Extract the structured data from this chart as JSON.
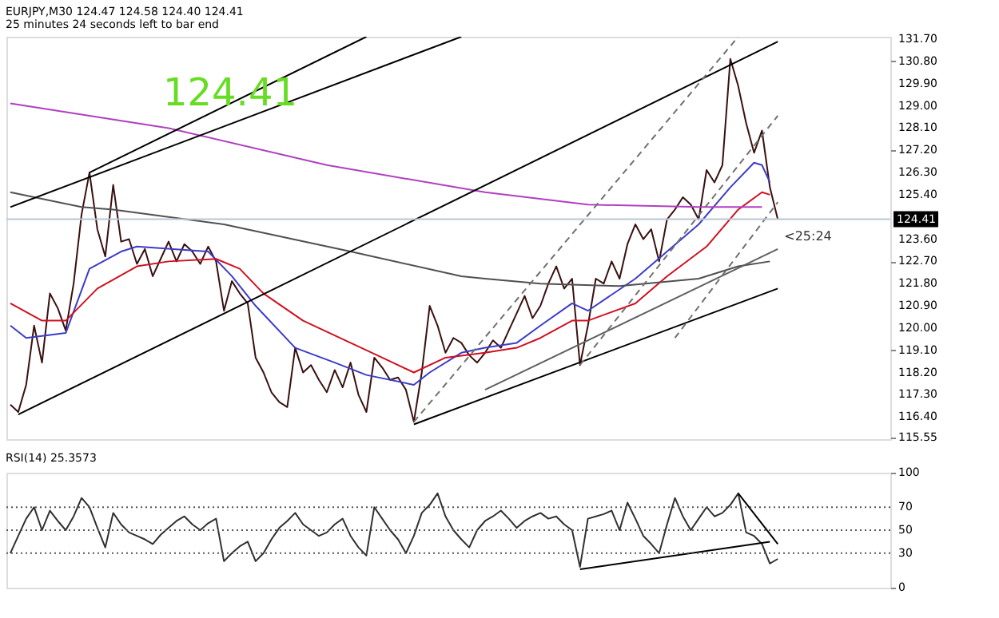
{
  "chart_data": [
    {
      "type": "line",
      "title": "EURJPY,M30  124.47 124.58 124.40 124.41",
      "subtitle": "25 minutes 24 seconds left to bar end",
      "annotations": [
        "124.41",
        "<25:24"
      ],
      "categories": [
        null,
        null,
        null,
        null,
        null,
        null,
        null,
        null,
        null,
        null,
        null,
        null,
        null,
        null,
        null,
        null,
        null,
        null,
        null,
        null,
        null,
        null,
        null,
        null,
        null,
        null,
        null,
        null,
        null,
        null,
        null,
        null,
        null,
        null,
        null,
        null,
        null,
        null,
        null,
        null,
        null,
        null,
        null,
        null,
        null,
        null,
        null,
        null,
        null,
        null,
        null,
        null,
        null,
        null,
        null,
        null,
        null,
        null,
        null,
        null,
        null,
        null,
        null,
        null,
        null,
        null,
        null,
        null,
        null,
        null,
        null,
        null,
        null,
        null,
        null,
        null,
        null,
        null,
        null,
        null,
        null,
        null,
        null,
        null,
        null,
        null,
        null,
        null,
        null,
        null,
        null,
        null,
        null,
        null,
        null,
        null,
        null,
        null
      ],
      "ylim": [
        115.5,
        131.8
      ],
      "tick_labels": "y",
      "grid": false,
      "legend": false,
      "yticks": [
        {
          "value": 115.55,
          "label": "115.55"
        },
        {
          "value": 116.4,
          "label": "116.40"
        },
        {
          "value": 117.3,
          "label": "117.30"
        },
        {
          "value": 118.2,
          "label": "118.20"
        },
        {
          "value": 119.1,
          "label": "119.10"
        },
        {
          "value": 120.0,
          "label": "120.00"
        },
        {
          "value": 120.9,
          "label": "120.90"
        },
        {
          "value": 121.8,
          "label": "121.80"
        },
        {
          "value": 122.7,
          "label": "122.70"
        },
        {
          "value": 123.6,
          "label": "123.60"
        },
        {
          "value": 125.4,
          "label": "125.40"
        },
        {
          "value": 126.3,
          "label": "126.30"
        },
        {
          "value": 127.2,
          "label": "127.20"
        },
        {
          "value": 128.1,
          "label": "128.10"
        },
        {
          "value": 129.0,
          "label": "129.00"
        },
        {
          "value": 129.9,
          "label": "129.90"
        },
        {
          "value": 130.8,
          "label": "130.80"
        },
        {
          "value": 131.7,
          "label": "131.70"
        }
      ],
      "ref_lines": [
        {
          "axis": "y",
          "value": 124.41,
          "label": "124.41",
          "color": "#b8c8d4"
        }
      ],
      "series": [
        {
          "color": "#3a1010",
          "values": [
            116.9,
            116.6,
            117.7,
            120.1,
            118.6,
            121.4,
            120.8,
            119.9,
            121.8,
            124.6,
            126.3,
            124.0,
            122.9,
            125.8,
            123.5,
            123.6,
            122.6,
            123.2,
            122.1,
            122.8,
            123.5,
            122.7,
            123.4,
            123.1,
            122.6,
            123.3,
            122.7,
            120.7,
            121.9,
            121.4,
            121.0,
            118.8,
            118.2,
            117.4,
            117.0,
            116.8,
            119.2,
            118.2,
            118.5,
            117.9,
            117.4,
            118.3,
            117.6,
            118.6,
            117.3,
            116.6,
            118.8,
            118.4,
            117.9,
            118.0,
            117.5,
            116.2,
            118.2,
            120.9,
            120.1,
            119.0,
            119.6,
            119.4,
            118.9,
            118.6,
            119.0,
            119.5,
            119.2,
            119.9,
            120.6,
            121.3,
            120.4,
            120.9,
            121.8,
            122.5,
            121.6,
            122.0,
            118.5,
            120.1,
            122.0,
            121.8,
            122.7,
            122.0,
            123.4,
            124.2,
            123.6,
            124.0,
            122.7,
            124.4,
            124.8,
            125.3,
            125.0,
            124.4,
            126.4,
            125.9,
            126.6,
            130.9,
            129.8,
            128.3,
            127.1,
            128.0,
            125.7,
            124.4
          ]
        },
        {
          "color": "#3c3cc8",
          "values": [
            120.1,
            null,
            119.6,
            null,
            null,
            null,
            null,
            119.8,
            null,
            null,
            122.4,
            null,
            null,
            null,
            123.1,
            null,
            123.3,
            null,
            null,
            null,
            null,
            null,
            null,
            null,
            null,
            123.1,
            null,
            null,
            122.1,
            null,
            null,
            120.9,
            null,
            null,
            null,
            null,
            119.2,
            null,
            null,
            null,
            null,
            118.6,
            null,
            null,
            null,
            118.1,
            null,
            null,
            null,
            null,
            null,
            117.7,
            null,
            118.2,
            null,
            null,
            null,
            119.0,
            null,
            null,
            119.2,
            null,
            null,
            null,
            119.4,
            null,
            null,
            120.1,
            null,
            null,
            null,
            121.0,
            null,
            120.7,
            null,
            null,
            null,
            null,
            null,
            122.0,
            null,
            null,
            null,
            123.1,
            null,
            null,
            null,
            124.2,
            null,
            null,
            null,
            125.7,
            null,
            null,
            126.7,
            126.6,
            125.9,
            null
          ]
        },
        {
          "color": "#d01020",
          "values": [
            121.0,
            null,
            null,
            null,
            120.3,
            null,
            null,
            120.3,
            null,
            null,
            null,
            121.6,
            null,
            null,
            null,
            null,
            122.5,
            null,
            null,
            null,
            122.7,
            null,
            null,
            null,
            null,
            null,
            122.8,
            null,
            null,
            122.4,
            null,
            null,
            121.4,
            null,
            null,
            null,
            null,
            120.3,
            null,
            null,
            null,
            null,
            null,
            119.4,
            null,
            null,
            null,
            118.8,
            null,
            null,
            null,
            118.2,
            null,
            null,
            null,
            118.8,
            null,
            null,
            null,
            null,
            119.0,
            null,
            null,
            null,
            119.2,
            null,
            null,
            119.6,
            null,
            null,
            null,
            120.3,
            null,
            120.3,
            null,
            null,
            null,
            null,
            null,
            121.0,
            null,
            null,
            null,
            122.1,
            null,
            null,
            null,
            null,
            123.3,
            null,
            null,
            null,
            124.8,
            null,
            null,
            125.5,
            125.4,
            null
          ]
        },
        {
          "color": "#505050",
          "values": [
            125.5,
            null,
            null,
            null,
            null,
            null,
            null,
            null,
            null,
            124.9,
            null,
            null,
            null,
            124.8,
            null,
            null,
            null,
            null,
            null,
            null,
            null,
            null,
            null,
            null,
            null,
            null,
            null,
            124.2,
            null,
            null,
            null,
            null,
            null,
            null,
            null,
            null,
            null,
            null,
            null,
            null,
            null,
            null,
            null,
            123.1,
            null,
            null,
            null,
            null,
            null,
            null,
            null,
            null,
            null,
            null,
            null,
            null,
            null,
            122.1,
            null,
            null,
            122.0,
            null,
            null,
            null,
            null,
            null,
            null,
            121.8,
            null,
            null,
            null,
            null,
            null,
            null,
            null,
            null,
            null,
            121.7,
            null,
            null,
            null,
            null,
            null,
            null,
            null,
            null,
            null,
            122.0,
            null,
            null,
            null,
            null,
            122.5,
            null,
            null,
            null,
            122.7,
            null
          ]
        },
        {
          "color": "#b040c0",
          "values": [
            129.1,
            null,
            null,
            null,
            null,
            null,
            null,
            null,
            null,
            null,
            null,
            null,
            null,
            null,
            null,
            null,
            null,
            null,
            null,
            null,
            128.1,
            null,
            null,
            null,
            null,
            null,
            null,
            null,
            null,
            null,
            null,
            null,
            null,
            null,
            null,
            null,
            null,
            null,
            null,
            null,
            126.6,
            null,
            null,
            null,
            null,
            null,
            null,
            null,
            null,
            null,
            null,
            null,
            null,
            null,
            null,
            null,
            null,
            null,
            null,
            null,
            125.5,
            null,
            null,
            null,
            null,
            null,
            null,
            null,
            null,
            null,
            null,
            null,
            null,
            125.0,
            null,
            null,
            null,
            null,
            null,
            null,
            null,
            null,
            null,
            null,
            null,
            null,
            null,
            124.9,
            null,
            null,
            null,
            null,
            null,
            null,
            null,
            124.9,
            null,
            null
          ]
        },
        {
          "color": "#000000",
          "values": [
            124.9,
            null,
            null,
            null,
            null,
            null,
            null,
            null,
            null,
            null,
            null,
            null,
            null,
            null,
            null,
            null,
            null,
            null,
            null,
            null,
            null,
            null,
            null,
            null,
            null,
            null,
            null,
            null,
            null,
            null,
            null,
            null,
            null,
            null,
            null,
            null,
            null,
            null,
            null,
            null,
            null,
            null,
            null,
            null,
            null,
            null,
            null,
            null,
            null,
            null,
            null,
            null,
            null,
            null,
            null,
            null,
            null,
            131.8,
            null,
            null,
            null,
            null,
            null,
            null,
            null,
            null,
            null,
            null,
            null,
            null,
            null,
            null,
            null,
            null,
            null,
            null,
            null,
            null,
            null,
            null,
            null,
            null,
            null,
            null,
            null,
            null,
            null,
            null,
            null,
            null,
            null,
            null,
            null,
            null,
            null,
            null,
            null,
            null
          ]
        },
        {
          "color": "#000000",
          "values": [
            null,
            null,
            null,
            null,
            null,
            null,
            null,
            null,
            null,
            null,
            126.3,
            null,
            null,
            null,
            null,
            null,
            null,
            null,
            null,
            null,
            null,
            null,
            null,
            null,
            null,
            null,
            null,
            null,
            null,
            null,
            null,
            null,
            null,
            null,
            null,
            null,
            null,
            null,
            null,
            null,
            null,
            null,
            null,
            null,
            null,
            131.8,
            null,
            null,
            null,
            null,
            null,
            null,
            null,
            null,
            null,
            null,
            null,
            null,
            null,
            null,
            null,
            null,
            null,
            null,
            null,
            null,
            null,
            null,
            null,
            null,
            null,
            null,
            null,
            null,
            null,
            null,
            null,
            null,
            null,
            null,
            null,
            null,
            null,
            null,
            null,
            null,
            null,
            null,
            null,
            null,
            null,
            null,
            null,
            null,
            null,
            null,
            null,
            null
          ]
        },
        {
          "color": "#000000",
          "values": [
            null,
            116.5,
            null,
            null,
            null,
            null,
            null,
            null,
            null,
            null,
            null,
            null,
            null,
            null,
            null,
            null,
            null,
            null,
            null,
            null,
            null,
            null,
            null,
            null,
            null,
            null,
            null,
            null,
            null,
            null,
            null,
            null,
            null,
            null,
            null,
            null,
            null,
            null,
            null,
            null,
            null,
            null,
            null,
            null,
            null,
            null,
            null,
            null,
            null,
            null,
            null,
            null,
            null,
            null,
            null,
            null,
            null,
            null,
            null,
            null,
            null,
            null,
            null,
            null,
            null,
            null,
            null,
            null,
            null,
            null,
            null,
            null,
            null,
            null,
            null,
            null,
            null,
            null,
            null,
            null,
            null,
            null,
            null,
            null,
            null,
            null,
            null,
            null,
            null,
            null,
            null,
            null,
            null,
            null,
            null,
            null,
            null,
            131.6
          ]
        },
        {
          "color": "#000000",
          "values": [
            null,
            null,
            null,
            null,
            null,
            null,
            null,
            null,
            null,
            null,
            null,
            null,
            null,
            null,
            null,
            null,
            null,
            null,
            null,
            null,
            null,
            null,
            null,
            null,
            null,
            null,
            null,
            null,
            null,
            null,
            null,
            null,
            null,
            null,
            null,
            null,
            null,
            null,
            null,
            null,
            null,
            null,
            null,
            null,
            null,
            null,
            null,
            null,
            null,
            null,
            null,
            116.1,
            null,
            null,
            null,
            null,
            null,
            null,
            null,
            null,
            null,
            null,
            null,
            null,
            null,
            null,
            null,
            null,
            null,
            null,
            null,
            null,
            null,
            null,
            null,
            null,
            null,
            null,
            null,
            null,
            null,
            null,
            null,
            null,
            null,
            null,
            null,
            null,
            null,
            null,
            null,
            null,
            null,
            null,
            null,
            null,
            null,
            121.6
          ]
        },
        {
          "color": "#606060",
          "values": [
            null,
            null,
            null,
            null,
            null,
            null,
            null,
            null,
            null,
            null,
            null,
            null,
            null,
            null,
            null,
            null,
            null,
            null,
            null,
            null,
            null,
            null,
            null,
            null,
            null,
            null,
            null,
            null,
            null,
            null,
            null,
            null,
            null,
            null,
            null,
            null,
            null,
            null,
            null,
            null,
            null,
            null,
            null,
            null,
            null,
            null,
            null,
            null,
            null,
            null,
            null,
            null,
            null,
            null,
            null,
            null,
            null,
            null,
            null,
            null,
            117.5,
            null,
            null,
            null,
            null,
            null,
            null,
            null,
            null,
            null,
            null,
            null,
            null,
            null,
            null,
            null,
            null,
            null,
            null,
            null,
            null,
            null,
            null,
            null,
            null,
            null,
            null,
            null,
            null,
            null,
            null,
            null,
            null,
            null,
            null,
            null,
            null,
            123.2
          ]
        },
        {
          "color": "#707070",
          "line_style": "dashed",
          "values": [
            null,
            null,
            null,
            null,
            null,
            null,
            null,
            null,
            null,
            null,
            null,
            null,
            null,
            null,
            null,
            null,
            null,
            null,
            null,
            null,
            null,
            null,
            null,
            null,
            null,
            null,
            null,
            null,
            null,
            null,
            null,
            null,
            null,
            null,
            null,
            null,
            null,
            null,
            null,
            null,
            null,
            null,
            null,
            null,
            null,
            null,
            null,
            null,
            null,
            null,
            null,
            116.2,
            null,
            null,
            null,
            null,
            null,
            null,
            null,
            null,
            null,
            null,
            null,
            null,
            null,
            null,
            null,
            null,
            null,
            null,
            null,
            null,
            null,
            null,
            null,
            null,
            null,
            null,
            null,
            null,
            null,
            null,
            null,
            null,
            null,
            null,
            null,
            null,
            null,
            null,
            null,
            null,
            131.8,
            null,
            null,
            null,
            null,
            null
          ]
        },
        {
          "color": "#707070",
          "line_style": "dashed",
          "values": [
            null,
            null,
            null,
            null,
            null,
            null,
            null,
            null,
            null,
            null,
            null,
            null,
            null,
            null,
            null,
            null,
            null,
            null,
            null,
            null,
            null,
            null,
            null,
            null,
            null,
            null,
            null,
            null,
            null,
            null,
            null,
            null,
            null,
            null,
            null,
            null,
            null,
            null,
            null,
            null,
            null,
            null,
            null,
            null,
            null,
            null,
            null,
            null,
            null,
            null,
            null,
            null,
            null,
            null,
            null,
            null,
            null,
            null,
            null,
            null,
            null,
            null,
            null,
            null,
            null,
            null,
            null,
            null,
            null,
            null,
            null,
            null,
            118.5,
            null,
            null,
            null,
            null,
            null,
            null,
            null,
            null,
            null,
            null,
            null,
            null,
            null,
            null,
            null,
            null,
            null,
            null,
            null,
            null,
            null,
            null,
            null,
            null,
            128.6
          ]
        },
        {
          "color": "#707070",
          "line_style": "dashed",
          "values": [
            null,
            null,
            null,
            null,
            null,
            null,
            null,
            null,
            null,
            null,
            null,
            null,
            null,
            null,
            null,
            null,
            null,
            null,
            null,
            null,
            null,
            null,
            null,
            null,
            null,
            null,
            null,
            null,
            null,
            null,
            null,
            null,
            null,
            null,
            null,
            null,
            null,
            null,
            null,
            null,
            null,
            null,
            null,
            null,
            null,
            null,
            null,
            null,
            null,
            null,
            null,
            null,
            null,
            null,
            null,
            null,
            null,
            null,
            null,
            null,
            null,
            null,
            null,
            null,
            null,
            null,
            null,
            null,
            null,
            null,
            null,
            null,
            null,
            null,
            null,
            null,
            null,
            null,
            null,
            null,
            null,
            null,
            null,
            null,
            119.6,
            null,
            null,
            null,
            null,
            null,
            null,
            null,
            null,
            null,
            null,
            null,
            null,
            125.1
          ]
        }
      ]
    },
    {
      "type": "line",
      "title": "RSI(14) 25.3573",
      "categories": [
        null,
        null,
        null,
        null,
        null,
        null,
        null,
        null,
        null,
        null,
        null,
        null,
        null,
        null,
        null,
        null,
        null,
        null,
        null,
        null,
        null,
        null,
        null,
        null,
        null,
        null,
        null,
        null,
        null,
        null,
        null,
        null,
        null,
        null,
        null,
        null,
        null,
        null,
        null,
        null,
        null,
        null,
        null,
        null,
        null,
        null,
        null,
        null,
        null,
        null,
        null,
        null,
        null,
        null,
        null,
        null,
        null,
        null,
        null,
        null,
        null,
        null,
        null,
        null,
        null,
        null,
        null,
        null,
        null,
        null,
        null,
        null,
        null,
        null,
        null,
        null,
        null,
        null,
        null,
        null,
        null,
        null,
        null,
        null,
        null,
        null,
        null,
        null,
        null,
        null,
        null,
        null,
        null,
        null,
        null,
        null,
        null,
        null
      ],
      "ylim": [
        0,
        100
      ],
      "yticks": [
        0,
        30,
        50,
        70,
        100
      ],
      "tick_labels": "y",
      "grid": false,
      "legend": false,
      "ref_lines": [
        {
          "axis": "y",
          "value": 30,
          "color": "#555555",
          "line_style": "dotted"
        },
        {
          "axis": "y",
          "value": 50,
          "color": "#555555",
          "line_style": "dotted"
        },
        {
          "axis": "y",
          "value": 70,
          "color": "#555555",
          "line_style": "dotted"
        }
      ],
      "series": [
        {
          "color": "#303030",
          "values": [
            30,
            45,
            60,
            70,
            50,
            67,
            58,
            50,
            62,
            78,
            70,
            52,
            35,
            65,
            55,
            48,
            45,
            42,
            38,
            46,
            52,
            58,
            62,
            55,
            50,
            56,
            60,
            23,
            30,
            36,
            40,
            23,
            30,
            42,
            52,
            58,
            65,
            55,
            50,
            45,
            48,
            55,
            60,
            45,
            35,
            28,
            70,
            60,
            50,
            42,
            30,
            45,
            65,
            72,
            82,
            62,
            50,
            42,
            35,
            50,
            58,
            62,
            67,
            60,
            52,
            58,
            62,
            65,
            60,
            62,
            55,
            50,
            18,
            60,
            62,
            64,
            67,
            50,
            74,
            60,
            45,
            38,
            30,
            55,
            78,
            62,
            50,
            60,
            70,
            62,
            65,
            72,
            82,
            48,
            45,
            38,
            21,
            25
          ]
        },
        {
          "color": "#000000",
          "values": [
            null,
            null,
            null,
            null,
            null,
            null,
            null,
            null,
            null,
            null,
            null,
            null,
            null,
            null,
            null,
            null,
            null,
            null,
            null,
            null,
            null,
            null,
            null,
            null,
            null,
            null,
            null,
            null,
            null,
            null,
            null,
            null,
            null,
            null,
            null,
            null,
            null,
            null,
            null,
            null,
            null,
            null,
            null,
            null,
            null,
            null,
            null,
            null,
            null,
            null,
            null,
            null,
            null,
            null,
            null,
            null,
            null,
            null,
            null,
            null,
            null,
            null,
            null,
            null,
            null,
            null,
            null,
            null,
            null,
            null,
            null,
            null,
            16,
            null,
            null,
            null,
            null,
            null,
            null,
            null,
            null,
            null,
            null,
            null,
            null,
            null,
            null,
            null,
            null,
            null,
            null,
            null,
            null,
            null,
            null,
            null,
            40,
            null
          ]
        },
        {
          "color": "#000000",
          "values": [
            null,
            null,
            null,
            null,
            null,
            null,
            null,
            null,
            null,
            null,
            null,
            null,
            null,
            null,
            null,
            null,
            null,
            null,
            null,
            null,
            null,
            null,
            null,
            null,
            null,
            null,
            null,
            null,
            null,
            null,
            null,
            null,
            null,
            null,
            null,
            null,
            null,
            null,
            null,
            null,
            null,
            null,
            null,
            null,
            null,
            null,
            null,
            null,
            null,
            null,
            null,
            null,
            null,
            null,
            null,
            null,
            null,
            null,
            null,
            null,
            null,
            null,
            null,
            null,
            null,
            null,
            null,
            null,
            null,
            null,
            null,
            null,
            null,
            null,
            null,
            null,
            null,
            null,
            null,
            null,
            null,
            null,
            null,
            null,
            null,
            null,
            null,
            null,
            null,
            null,
            null,
            null,
            82,
            null,
            null,
            null,
            null,
            38
          ]
        }
      ]
    }
  ]
}
